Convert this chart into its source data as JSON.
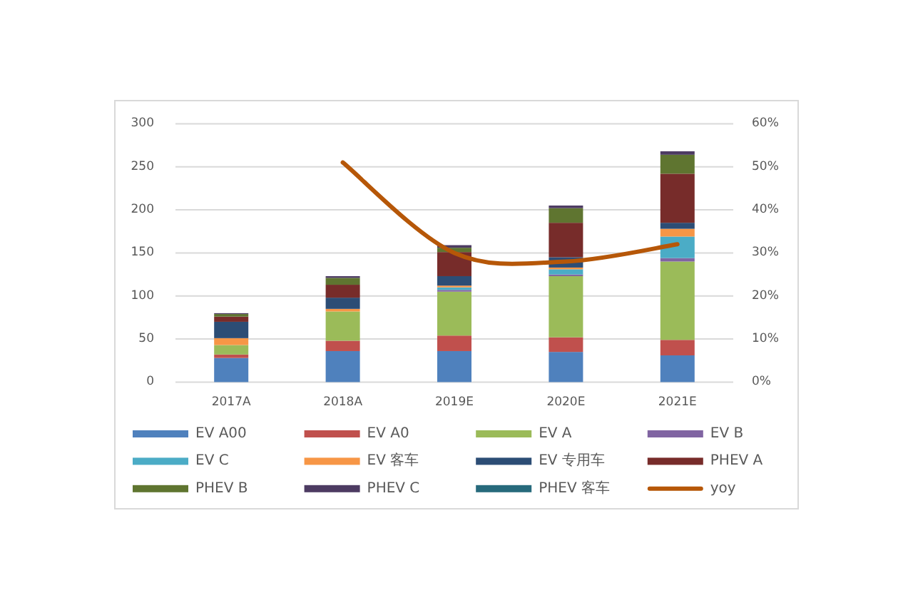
{
  "chart_data": {
    "type": "bar",
    "stacked": true,
    "categories": [
      "2017A",
      "2018A",
      "2019E",
      "2020E",
      "2021E"
    ],
    "ylim": [
      0,
      300
    ],
    "yticks": [
      0,
      50,
      100,
      150,
      200,
      250,
      300
    ],
    "y2lim": [
      0,
      60
    ],
    "y2ticks": [
      {
        "value": 0,
        "label": "0%"
      },
      {
        "value": 10,
        "label": "10%"
      },
      {
        "value": 20,
        "label": "20%"
      },
      {
        "value": 30,
        "label": "30%"
      },
      {
        "value": 40,
        "label": "40%"
      },
      {
        "value": 50,
        "label": "50%"
      },
      {
        "value": 60,
        "label": "60%"
      }
    ],
    "grid": "y",
    "legend": "bottom",
    "series": [
      {
        "name": "EV A00",
        "color": "#4f81bd",
        "values": [
          28,
          36,
          36,
          35,
          31
        ]
      },
      {
        "name": "EV A0",
        "color": "#c0504d",
        "values": [
          4,
          12,
          18,
          17,
          18
        ]
      },
      {
        "name": "EV A",
        "color": "#9bbb59",
        "values": [
          11,
          34,
          51,
          71,
          91
        ]
      },
      {
        "name": "EV B",
        "color": "#8064a2",
        "values": [
          null,
          null,
          2,
          2,
          4
        ]
      },
      {
        "name": "EV C",
        "color": "#4bacc6",
        "values": [
          null,
          null,
          3,
          6,
          25
        ]
      },
      {
        "name": "EV 客车",
        "color": "#f79646",
        "values": [
          8,
          3,
          2,
          2,
          9
        ]
      },
      {
        "name": "EV 专用车",
        "color": "#2c4d75",
        "values": [
          19,
          13,
          11,
          12,
          7
        ]
      },
      {
        "name": "PHEV A",
        "color": "#772c2a",
        "values": [
          6,
          15,
          28,
          40,
          57
        ]
      },
      {
        "name": "PHEV B",
        "color": "#5f7530",
        "values": [
          3,
          8,
          5,
          17,
          22
        ]
      },
      {
        "name": "PHEV C",
        "color": "#4d3b62",
        "values": [
          1,
          2,
          3,
          3,
          4
        ]
      },
      {
        "name": "PHEV 客车",
        "color": "#276a7c",
        "values": [
          null,
          null,
          null,
          null,
          null
        ]
      },
      {
        "name": "yoy",
        "type": "line",
        "axis": "y2",
        "color": "#b65708",
        "values": [
          null,
          51,
          30,
          28,
          32
        ]
      }
    ]
  }
}
